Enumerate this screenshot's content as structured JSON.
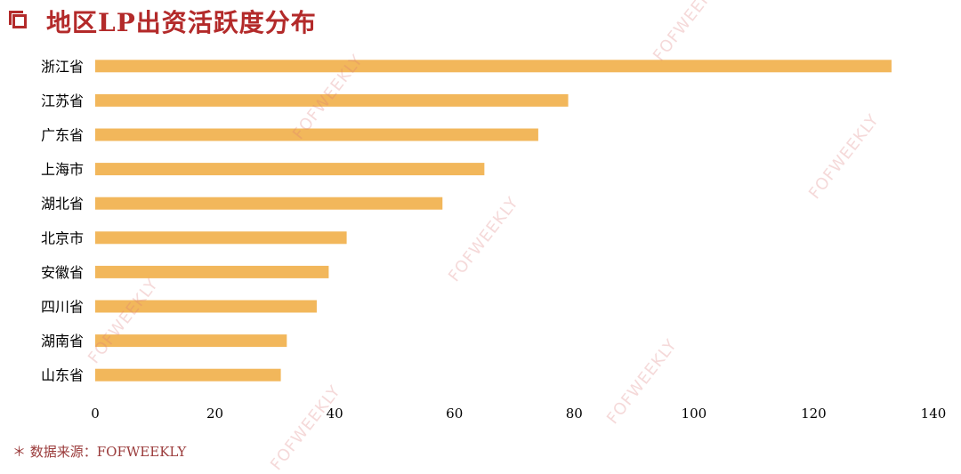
{
  "title": "地区LP出资活跃度分布",
  "footer": "＊ 数据来源：FOFWEEKLY",
  "watermark": "FOFWEEKLY",
  "chart_data": {
    "type": "bar",
    "orientation": "horizontal",
    "categories": [
      "浙江省",
      "江苏省",
      "广东省",
      "上海市",
      "湖北省",
      "北京市",
      "安徽省",
      "四川省",
      "湖南省",
      "山东省"
    ],
    "values": [
      133,
      79,
      74,
      65,
      58,
      42,
      39,
      37,
      32,
      31
    ],
    "xlim": [
      0,
      140
    ],
    "xticks": [
      0,
      20,
      40,
      60,
      80,
      100,
      120,
      140
    ],
    "bar_color": "#f2b75b",
    "grid": false
  }
}
